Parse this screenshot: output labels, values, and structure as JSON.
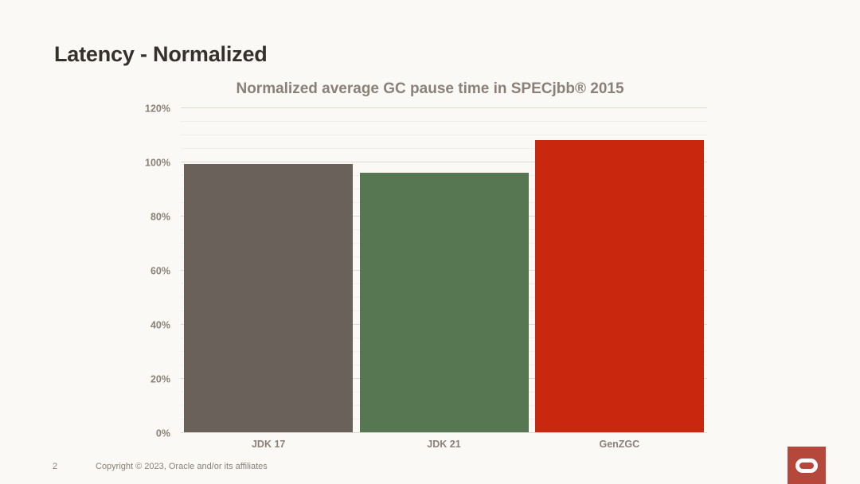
{
  "slide": {
    "title": "Latency - Normalized",
    "page_number": "2",
    "copyright": "Copyright © 2023, Oracle and/or its affiliates",
    "background_color": "#fbf9f5",
    "title_color": "#34302b",
    "muted_text_color": "#8a8078"
  },
  "chart_data": {
    "type": "bar",
    "title": "Normalized average GC pause time in SPECjbb® 2015",
    "categories": [
      "JDK 17",
      "JDK 21",
      "GenZGC"
    ],
    "values": [
      99,
      96,
      108
    ],
    "unit": "%",
    "ylim": [
      0,
      120
    ],
    "y_major_tick": 20,
    "y_minor_tick": 5,
    "y_ticks": [
      "0%",
      "20%",
      "40%",
      "60%",
      "80%",
      "100%",
      "120%"
    ],
    "grid": true,
    "legend": false,
    "bar_colors": [
      "#6a615b",
      "#567751",
      "#c9280f"
    ],
    "xlabel": "",
    "ylabel": ""
  },
  "logo": {
    "name": "Oracle",
    "square_color": "#b5473b",
    "mark_color": "#ffffff"
  }
}
